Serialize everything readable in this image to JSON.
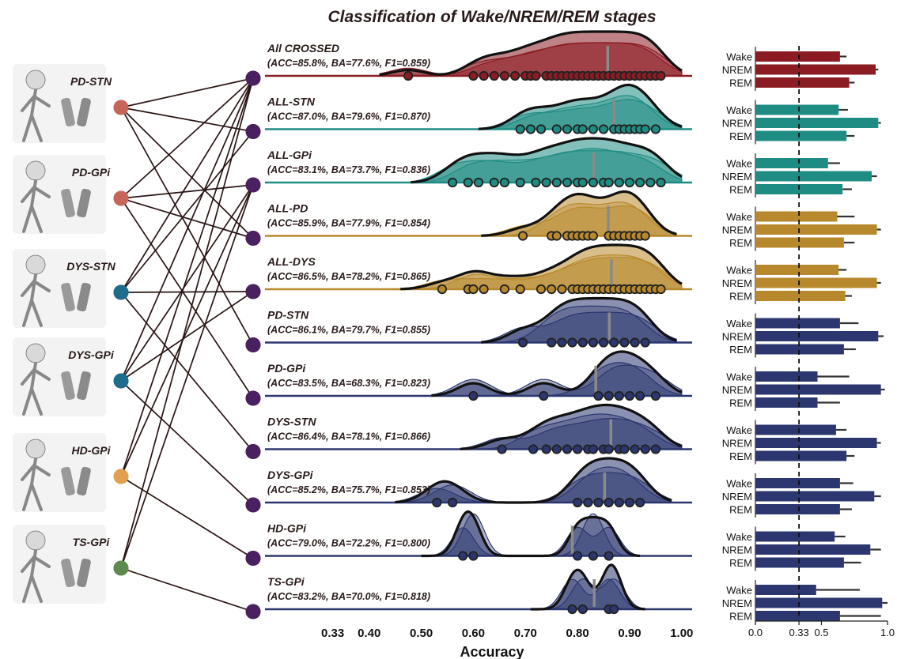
{
  "title": "Classification of Wake/NREM/REM stages",
  "xlabel": "Accuracy",
  "colors": {
    "crossed": "#8b1c23",
    "stn": "#1f8c84",
    "gpi": "#1f8c84",
    "pd": "#b8892c",
    "dys": "#b8892c",
    "navy": "#2c3770",
    "node": "#4a2060",
    "line": "#2a1414"
  },
  "patients": [
    {
      "label": "PD-STN",
      "color": "#c8655a",
      "icon": "pd-stn-patient-illustration-icon"
    },
    {
      "label": "PD-GPi",
      "color": "#c8655a",
      "icon": "pd-gpi-patient-illustration-icon"
    },
    {
      "label": "DYS-STN",
      "color": "#1f6d8c",
      "icon": "dys-stn-patient-illustration-icon"
    },
    {
      "label": "DYS-GPi",
      "color": "#1f6d8c",
      "icon": "dys-gpi-patient-illustration-icon"
    },
    {
      "label": "HD-GPi",
      "color": "#e0a050",
      "icon": "hd-gpi-patient-illustration-icon"
    },
    {
      "label": "TS-GPi",
      "color": "#5e8a4e",
      "icon": "ts-gpi-patient-illustration-icon"
    }
  ],
  "chart_data": [
    {
      "type": "ridgeline",
      "xlabel": "Accuracy",
      "xticks": [
        0.33,
        0.4,
        0.5,
        0.6,
        0.7,
        0.8,
        0.9,
        1.0
      ],
      "xtick_labels": [
        "0.33",
        "0.40",
        "0.50",
        "0.60",
        "0.70",
        "0.80",
        "0.90",
        "1.00"
      ],
      "xlim": [
        0.2,
        1.03
      ],
      "series": [
        {
          "name": "All CROSSED",
          "metrics": "(ACC=85.8%, BA=77.6%, F1=0.859)",
          "color": "#8b1c23",
          "median": 0.858,
          "points": [
            0.475,
            0.6,
            0.62,
            0.64,
            0.66,
            0.68,
            0.7,
            0.71,
            0.72,
            0.74,
            0.75,
            0.76,
            0.77,
            0.78,
            0.79,
            0.8,
            0.81,
            0.82,
            0.83,
            0.84,
            0.85,
            0.86,
            0.87,
            0.88,
            0.89,
            0.9,
            0.91,
            0.92,
            0.93,
            0.94,
            0.95,
            0.96
          ]
        },
        {
          "name": "ALL-STN",
          "metrics": "(ACC=87.0%, BA=79.6%, F1=0.870)",
          "color": "#1f8c84",
          "median": 0.87,
          "points": [
            0.69,
            0.71,
            0.73,
            0.76,
            0.78,
            0.8,
            0.81,
            0.83,
            0.85,
            0.87,
            0.88,
            0.89,
            0.9,
            0.91,
            0.92,
            0.93,
            0.95
          ]
        },
        {
          "name": "ALL-GPi",
          "metrics": "(ACC=83.1%, BA=73.7%, F1=0.836)",
          "color": "#1f8c84",
          "median": 0.831,
          "points": [
            0.56,
            0.59,
            0.61,
            0.64,
            0.66,
            0.69,
            0.72,
            0.74,
            0.76,
            0.78,
            0.8,
            0.81,
            0.83,
            0.85,
            0.86,
            0.88,
            0.9,
            0.92,
            0.94,
            0.96
          ]
        },
        {
          "name": "ALL-PD",
          "metrics": "(ACC=85.9%, BA=77.9%, F1=0.854)",
          "color": "#b8892c",
          "median": 0.859,
          "points": [
            0.695,
            0.75,
            0.76,
            0.78,
            0.79,
            0.8,
            0.81,
            0.82,
            0.83,
            0.86,
            0.87,
            0.88,
            0.89,
            0.9,
            0.91,
            0.92,
            0.93
          ]
        },
        {
          "name": "ALL-DYS",
          "metrics": "(ACC=86.5%, BA=78.2%, F1=0.865)",
          "color": "#b8892c",
          "median": 0.865,
          "points": [
            0.54,
            0.59,
            0.6,
            0.62,
            0.66,
            0.69,
            0.73,
            0.75,
            0.77,
            0.79,
            0.8,
            0.81,
            0.82,
            0.83,
            0.84,
            0.85,
            0.86,
            0.87,
            0.88,
            0.89,
            0.9,
            0.91,
            0.92,
            0.93,
            0.94,
            0.95,
            0.96
          ]
        },
        {
          "name": "PD-STN",
          "metrics": "(ACC=86.1%, BA=79.7%, F1=0.855)",
          "color": "#2c3770",
          "median": 0.861,
          "points": [
            0.695,
            0.75,
            0.77,
            0.79,
            0.81,
            0.83,
            0.85,
            0.87,
            0.89,
            0.91,
            0.93
          ]
        },
        {
          "name": "PD-GPi",
          "metrics": "(ACC=83.5%, BA=68.3%, F1=0.823)",
          "color": "#2c3770",
          "median": 0.835,
          "points": [
            0.6,
            0.735,
            0.84,
            0.86,
            0.88,
            0.9,
            0.92,
            0.95
          ]
        },
        {
          "name": "DYS-STN",
          "metrics": "(ACC=86.4%, BA=78.1%, F1=0.866)",
          "color": "#2c3770",
          "median": 0.864,
          "points": [
            0.655,
            0.715,
            0.74,
            0.76,
            0.78,
            0.8,
            0.82,
            0.83,
            0.85,
            0.86,
            0.88,
            0.89,
            0.91,
            0.93,
            0.95
          ]
        },
        {
          "name": "DYS-GPi",
          "metrics": "(ACC=85.2%, BA=75.7%, F1=0.853)",
          "color": "#2c3770",
          "median": 0.852,
          "points": [
            0.53,
            0.56,
            0.8,
            0.82,
            0.84,
            0.86,
            0.88,
            0.9,
            0.92
          ]
        },
        {
          "name": "HD-GPi",
          "metrics": "(ACC=79.0%, BA=72.2%, F1=0.800)",
          "color": "#2c3770",
          "median": 0.79,
          "points": [
            0.58,
            0.6,
            0.8,
            0.83,
            0.86
          ]
        },
        {
          "name": "TS-GPi",
          "metrics": "(ACC=83.2%, BA=70.0%, F1=0.818)",
          "color": "#2c3770",
          "median": 0.832,
          "points": [
            0.79,
            0.81,
            0.86,
            0.87
          ]
        }
      ]
    },
    {
      "type": "bar",
      "orientation": "horizontal",
      "categories": [
        "Wake",
        "NREM",
        "REM"
      ],
      "xticks": [
        0.0,
        0.33,
        0.5,
        1.0
      ],
      "xtick_labels": [
        "0.0",
        "0.33",
        "0.5",
        "1.0"
      ],
      "xlim": [
        0,
        1.0
      ],
      "reference_line": 0.33,
      "groups": [
        {
          "name": "All CROSSED",
          "color": "#8b1c23",
          "values": [
            0.64,
            0.91,
            0.71
          ],
          "errors": [
            0.05,
            0.02,
            0.04
          ]
        },
        {
          "name": "ALL-STN",
          "color": "#1f8c84",
          "values": [
            0.63,
            0.93,
            0.69
          ],
          "errors": [
            0.07,
            0.02,
            0.06
          ]
        },
        {
          "name": "ALL-GPi",
          "color": "#1f8c84",
          "values": [
            0.55,
            0.88,
            0.66
          ],
          "errors": [
            0.09,
            0.04,
            0.07
          ]
        },
        {
          "name": "ALL-PD",
          "color": "#b8892c",
          "values": [
            0.62,
            0.92,
            0.67
          ],
          "errors": [
            0.13,
            0.03,
            0.08
          ]
        },
        {
          "name": "ALL-DYS",
          "color": "#b8892c",
          "values": [
            0.63,
            0.92,
            0.68
          ],
          "errors": [
            0.06,
            0.03,
            0.05
          ]
        },
        {
          "name": "PD-STN",
          "color": "#2c3770",
          "values": [
            0.64,
            0.93,
            0.67
          ],
          "errors": [
            0.14,
            0.04,
            0.09
          ]
        },
        {
          "name": "PD-GPi",
          "color": "#2c3770",
          "values": [
            0.47,
            0.95,
            0.47
          ],
          "errors": [
            0.24,
            0.03,
            0.17
          ]
        },
        {
          "name": "DYS-STN",
          "color": "#2c3770",
          "values": [
            0.61,
            0.92,
            0.69
          ],
          "errors": [
            0.08,
            0.03,
            0.06
          ]
        },
        {
          "name": "DYS-GPi",
          "color": "#2c3770",
          "values": [
            0.64,
            0.9,
            0.64
          ],
          "errors": [
            0.1,
            0.05,
            0.09
          ]
        },
        {
          "name": "HD-GPi",
          "color": "#2c3770",
          "values": [
            0.6,
            0.87,
            0.67
          ],
          "errors": [
            0.08,
            0.08,
            0.13
          ]
        },
        {
          "name": "TS-GPi",
          "color": "#2c3770",
          "values": [
            0.46,
            0.96,
            0.64
          ],
          "errors": [
            0.33,
            0.06,
            0.31
          ]
        }
      ]
    }
  ]
}
